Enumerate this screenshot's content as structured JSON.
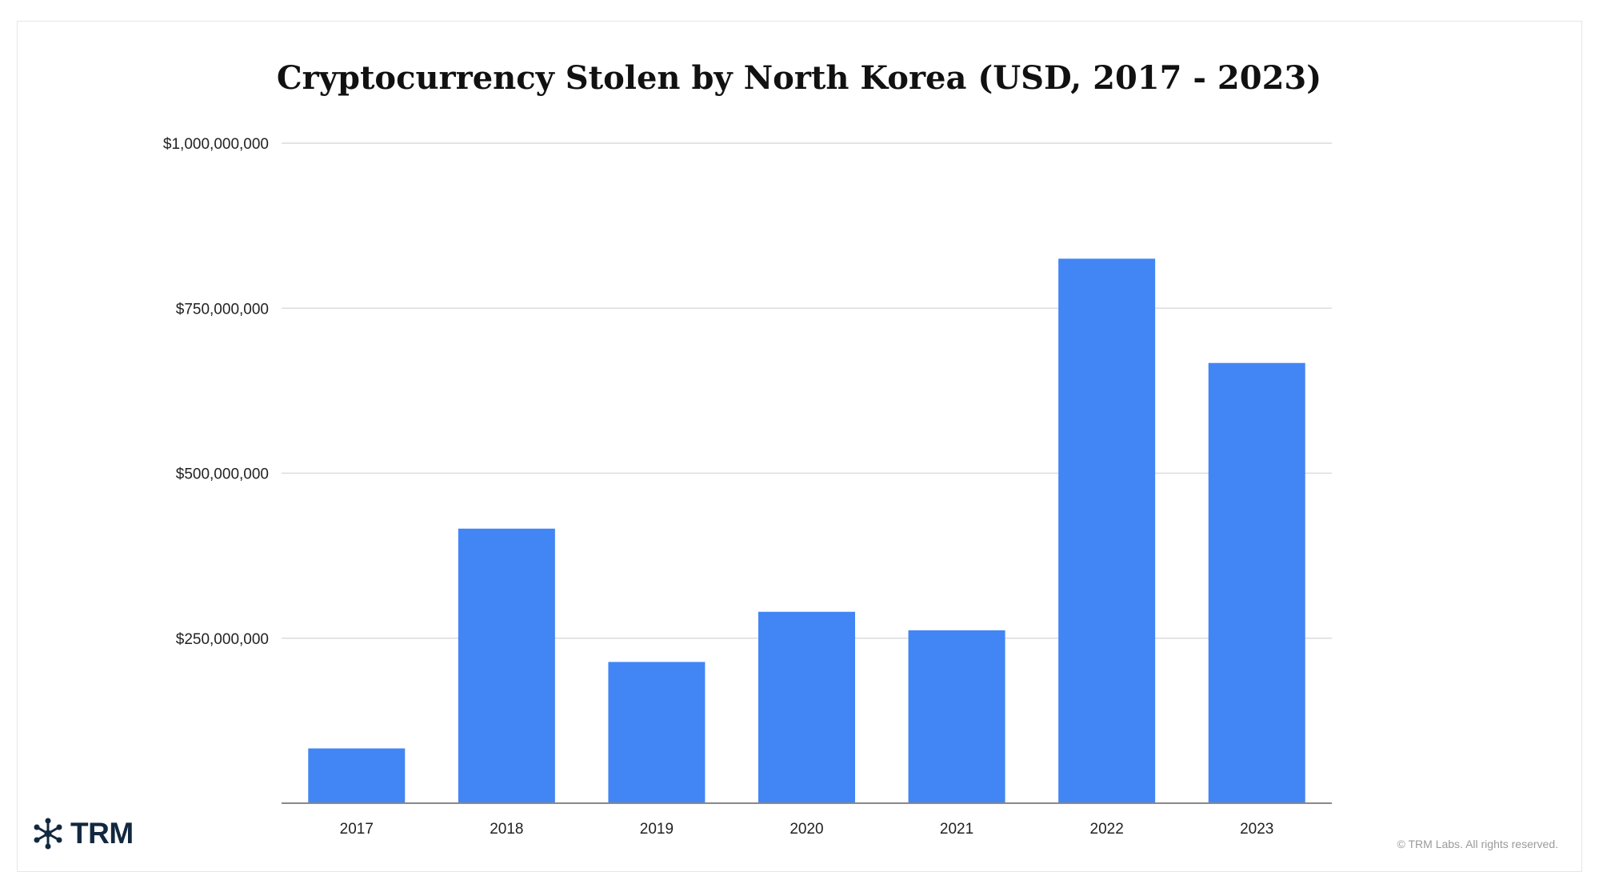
{
  "chart_data": {
    "type": "bar",
    "title": "Cryptocurrency Stolen by North Korea (USD, 2017 - 2023)",
    "xlabel": "",
    "ylabel": "",
    "categories": [
      "2017",
      "2018",
      "2019",
      "2020",
      "2021",
      "2022",
      "2023"
    ],
    "values": [
      83000000,
      416000000,
      214000000,
      290000000,
      262000000,
      825000000,
      667000000
    ],
    "ylim": [
      0,
      1000000000
    ],
    "yticks": [
      250000000,
      500000000,
      750000000,
      1000000000
    ],
    "ytick_labels": [
      "$250,000,000",
      "$500,000,000",
      "$750,000,000",
      "$1,000,000,000"
    ],
    "grid": true,
    "legend": "none",
    "bar_color": "#4285f4"
  },
  "branding": {
    "logo_text": "TRM",
    "logo_color": "#12283f",
    "logo_icon": "asterisk-network-icon",
    "copyright": "© TRM Labs. All rights reserved."
  }
}
